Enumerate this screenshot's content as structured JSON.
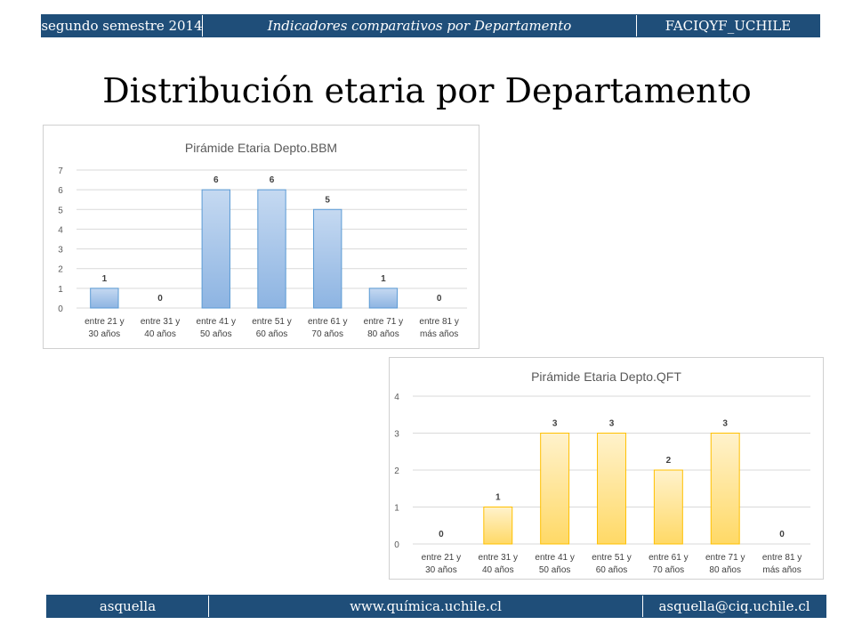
{
  "header": {
    "left": "segundo semestre 2014",
    "center": "Indicadores comparativos por Departamento",
    "right": "FACIQYF_UCHILE"
  },
  "title": "Distribución etaria por Departamento",
  "footer": {
    "left": "asquella",
    "center": "www.química.uchile.cl",
    "right": "asquella@ciq.uchile.cl"
  },
  "colors": {
    "header_bg": "#1f4e79",
    "bbm_fill_top": "#c5d9f1",
    "bbm_fill_bottom": "#8db4e2",
    "bbm_stroke": "#5b9bd5",
    "qft_fill_top": "#fff2cc",
    "qft_fill_bottom": "#ffd966",
    "qft_stroke": "#ffc000",
    "grid": "#d9d9d9"
  },
  "chart_data": [
    {
      "type": "bar",
      "title": "Pirámide Etaria Depto.BBM",
      "categories": [
        [
          "entre 21 y",
          "30 años"
        ],
        [
          "entre 31 y",
          "40 años"
        ],
        [
          "entre 41 y",
          "50 años"
        ],
        [
          "entre 51 y",
          "60 años"
        ],
        [
          "entre 61 y",
          "70 años"
        ],
        [
          "entre 71 y",
          "80 años"
        ],
        [
          "entre 81 y",
          "más años"
        ]
      ],
      "values": [
        1,
        0,
        6,
        6,
        5,
        1,
        0
      ],
      "ylim": [
        0,
        7
      ],
      "yticks": [
        0,
        1,
        2,
        3,
        4,
        5,
        6,
        7
      ],
      "grid": true,
      "style": "bbm"
    },
    {
      "type": "bar",
      "title": "Pirámide Etaria Depto.QFT",
      "categories": [
        [
          "entre 21 y",
          "30 años"
        ],
        [
          "entre 31 y",
          "40 años"
        ],
        [
          "entre 41 y",
          "50 años"
        ],
        [
          "entre 51 y",
          "60 años"
        ],
        [
          "entre 61 y",
          "70 años"
        ],
        [
          "entre 71 y",
          "80 años"
        ],
        [
          "entre 81 y",
          "más años"
        ]
      ],
      "values": [
        0,
        1,
        3,
        3,
        2,
        3,
        0
      ],
      "ylim": [
        0,
        4
      ],
      "yticks": [
        0,
        1,
        2,
        3,
        4
      ],
      "grid": true,
      "style": "qft"
    }
  ]
}
